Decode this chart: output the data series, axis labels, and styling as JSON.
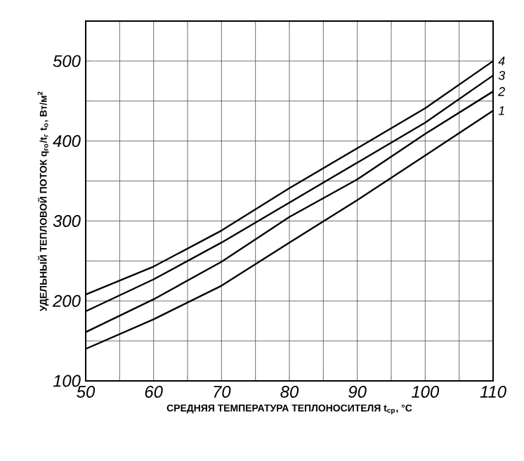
{
  "chart_data": {
    "type": "line",
    "xlabel": "СРЕДНЯЯ ТЕМПЕРАТУРА ТЕПЛОНОСИТЕЛЯ  t$_{ср}$, °C",
    "ylabel": "УДЕЛЬНЫЙ ТЕПЛОВОЙ ПОТОК q$_{го}$/t$_{г}$ t$_{о}$, Вт/м$^{2}$",
    "x": [
      50,
      60,
      70,
      80,
      90,
      100,
      110
    ],
    "series": [
      {
        "name": "1",
        "color": "#000000",
        "values": [
          140,
          177,
          219,
          273,
          326,
          382,
          438
        ]
      },
      {
        "name": "2",
        "color": "#000000",
        "values": [
          161,
          202,
          249,
          305,
          352,
          409,
          462
        ]
      },
      {
        "name": "3",
        "color": "#000000",
        "values": [
          187,
          227,
          273,
          323,
          373,
          423,
          482
        ]
      },
      {
        "name": "4",
        "color": "#000000",
        "values": [
          208,
          243,
          288,
          341,
          391,
          441,
          500
        ]
      }
    ],
    "xlim": [
      50,
      110
    ],
    "ylim": [
      100,
      550
    ],
    "xticks": [
      50,
      {
        "value": 55,
        "label": null
      },
      60,
      {
        "value": 65,
        "label": null
      },
      70,
      {
        "value": 75,
        "label": null
      },
      80,
      {
        "value": 85,
        "label": null
      },
      90,
      {
        "value": 95,
        "label": null
      },
      100,
      {
        "value": 105,
        "label": null
      },
      110
    ],
    "yticks": [
      100,
      {
        "value": 150,
        "label": null
      },
      200,
      {
        "value": 250,
        "label": null
      },
      300,
      {
        "value": 350,
        "label": null
      },
      400,
      {
        "value": 450,
        "label": null
      },
      500,
      {
        "value": 550,
        "label": null
      }
    ],
    "grid": true,
    "legend": "top right",
    "marker": "none",
    "line_style": "solid"
  }
}
